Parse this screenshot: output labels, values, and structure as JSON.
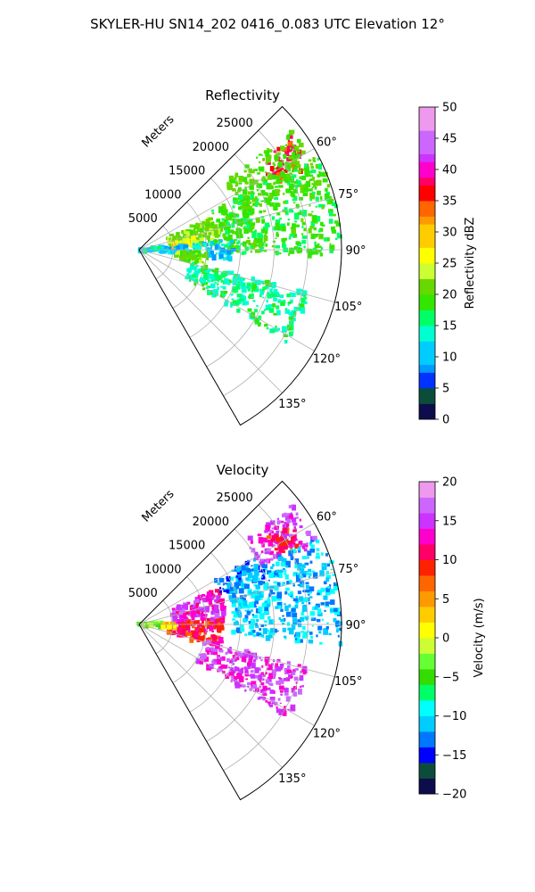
{
  "chart_data": [
    {
      "type": "heatmap",
      "title": "SKYLER-HU  SN14_202  0416_0.083 UTC Elevation 12°",
      "panels": [
        {
          "title": "Reflectivity",
          "projection": "polar sector",
          "theta_range_deg": [
            45,
            150
          ],
          "r_range_m": [
            0,
            30000
          ],
          "r_axis_label": "Meters",
          "r_ticks": [
            5000,
            10000,
            15000,
            20000,
            25000
          ],
          "theta_ticks": [
            "60°",
            "75°",
            "90°",
            "105°",
            "120°",
            "135°"
          ],
          "colorbar": {
            "label": "Reflectivity dBZ",
            "range": [
              0,
              50
            ],
            "ticks": [
              "0",
              "5",
              "10",
              "15",
              "20",
              "25",
              "30",
              "35",
              "40",
              "45",
              "50"
            ]
          },
          "echo_regions": [
            {
              "theta": [
                53,
                64
              ],
              "r": [
                22000,
                28000
              ],
              "value": 36
            },
            {
              "theta": [
                52,
                70
              ],
              "r": [
                16000,
                29000
              ],
              "value": 20
            },
            {
              "theta": [
                62,
                92
              ],
              "r": [
                12000,
                30000
              ],
              "value": 18
            },
            {
              "theta": [
                66,
                86
              ],
              "r": [
                4500,
                12000
              ],
              "value": 22
            },
            {
              "theta": [
                78,
                88
              ],
              "r": [
                5000,
                9500
              ],
              "value": 26
            },
            {
              "theta": [
                84,
                96
              ],
              "r": [
                3000,
                14000
              ],
              "value": 11
            },
            {
              "theta": [
                92,
                104
              ],
              "r": [
                5500,
                10500
              ],
              "value": 21
            },
            {
              "theta": [
                82,
                96
              ],
              "r": [
                0,
                3500
              ],
              "value": 13
            },
            {
              "theta": [
                104,
                122
              ],
              "r": [
                8000,
                26000
              ],
              "value": 15
            }
          ]
        },
        {
          "title": "Velocity",
          "projection": "polar sector",
          "theta_range_deg": [
            45,
            150
          ],
          "r_range_m": [
            0,
            30000
          ],
          "r_axis_label": "Meters",
          "r_ticks": [
            5000,
            10000,
            15000,
            20000,
            25000
          ],
          "theta_ticks": [
            "60°",
            "75°",
            "90°",
            "105°",
            "120°",
            "135°"
          ],
          "colorbar": {
            "label": "Velocity (m/s)",
            "range": [
              -20,
              20
            ],
            "ticks": [
              "−20",
              "−15",
              "−10",
              "−5",
              "0",
              "5",
              "10",
              "15",
              "20"
            ]
          },
          "echo_regions": [
            {
              "theta": [
                52,
                66
              ],
              "r": [
                20000,
                29000
              ],
              "value": 15
            },
            {
              "theta": [
                56,
                64
              ],
              "r": [
                23000,
                27000
              ],
              "value": 10
            },
            {
              "theta": [
                64,
                96
              ],
              "r": [
                14000,
                30000
              ],
              "value": -11
            },
            {
              "theta": [
                66,
                90
              ],
              "r": [
                5000,
                13000
              ],
              "value": 14
            },
            {
              "theta": [
                86,
                106
              ],
              "r": [
                4500,
                12500
              ],
              "value": 10
            },
            {
              "theta": [
                82,
                97
              ],
              "r": [
                0,
                3500
              ],
              "value": -3
            },
            {
              "theta": [
                88,
                96
              ],
              "r": [
                3500,
                5500
              ],
              "value": 3
            },
            {
              "theta": [
                104,
                122
              ],
              "r": [
                10000,
                26000
              ],
              "value": 15
            },
            {
              "theta": [
                60,
                70
              ],
              "r": [
                13000,
                20000
              ],
              "value": -13
            }
          ]
        }
      ]
    }
  ]
}
